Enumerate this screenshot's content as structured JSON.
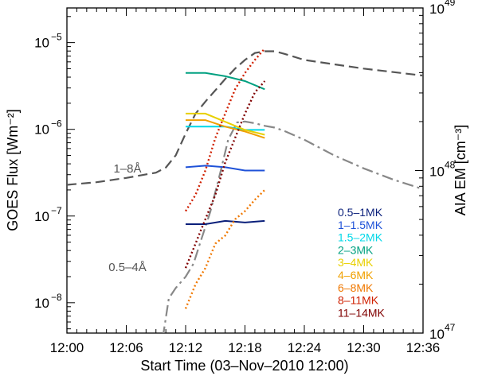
{
  "chart_data": {
    "type": "line",
    "xlabel": "Start Time (03–Nov–2010 12:00)",
    "ylabel_left": "GOES Flux [Wm⁻²]",
    "ylabel_right": "AIA EM [cm⁻³]",
    "x_range_min": [
      0,
      36
    ],
    "x_ticks": [
      {
        "v": 0,
        "label": "12:00"
      },
      {
        "v": 6,
        "label": "12:06"
      },
      {
        "v": 12,
        "label": "12:12"
      },
      {
        "v": 18,
        "label": "12:18"
      },
      {
        "v": 24,
        "label": "12:24"
      },
      {
        "v": 30,
        "label": "12:30"
      },
      {
        "v": 36,
        "label": "12:36"
      }
    ],
    "left_log_range": [
      -8.35,
      -4.6
    ],
    "left_ticks": [
      {
        "exp": -5,
        "base": "10",
        "sup": "−5"
      },
      {
        "exp": -6,
        "base": "10",
        "sup": "−6"
      },
      {
        "exp": -7,
        "base": "10",
        "sup": "−7"
      },
      {
        "exp": -8,
        "base": "10",
        "sup": "−8"
      }
    ],
    "right_log_range": [
      47,
      49
    ],
    "right_ticks": [
      {
        "exp": 49,
        "base": "10",
        "sup": "49"
      },
      {
        "exp": 48,
        "base": "10",
        "sup": "48"
      },
      {
        "exp": 47,
        "base": "10",
        "sup": "47"
      }
    ],
    "goes_series": [
      {
        "name": "1–8Å",
        "color": "#555555",
        "dash": "dashed",
        "points": [
          [
            0,
            -6.64
          ],
          [
            3,
            -6.61
          ],
          [
            6,
            -6.56
          ],
          [
            9,
            -6.5
          ],
          [
            10,
            -6.44
          ],
          [
            11,
            -6.3
          ],
          [
            12,
            -6.05
          ],
          [
            13,
            -5.82
          ],
          [
            14,
            -5.68
          ],
          [
            15,
            -5.55
          ],
          [
            16,
            -5.42
          ],
          [
            17,
            -5.3
          ],
          [
            18,
            -5.2
          ],
          [
            19,
            -5.12
          ],
          [
            20,
            -5.1
          ],
          [
            21,
            -5.1
          ],
          [
            22,
            -5.13
          ],
          [
            24,
            -5.2
          ],
          [
            27,
            -5.25
          ],
          [
            30,
            -5.3
          ],
          [
            33,
            -5.34
          ],
          [
            36,
            -5.38
          ]
        ]
      },
      {
        "name": "0.5–4Å",
        "color": "#888888",
        "dash": "dashdot",
        "points": [
          [
            9.7,
            -8.4
          ],
          [
            10.3,
            -7.95
          ],
          [
            11,
            -7.83
          ],
          [
            12,
            -7.7
          ],
          [
            12.8,
            -7.55
          ],
          [
            13.5,
            -7.3
          ],
          [
            14.5,
            -6.95
          ],
          [
            15.5,
            -6.5
          ],
          [
            16.3,
            -6.12
          ],
          [
            17.2,
            -5.92
          ],
          [
            18,
            -5.91
          ],
          [
            19,
            -5.93
          ],
          [
            20,
            -5.96
          ],
          [
            21,
            -5.98
          ],
          [
            22,
            -6.02
          ],
          [
            24,
            -6.12
          ],
          [
            27,
            -6.3
          ],
          [
            30,
            -6.45
          ],
          [
            33,
            -6.58
          ],
          [
            36,
            -6.69
          ]
        ]
      }
    ],
    "aia_series": [
      {
        "name": "0.5–1MK",
        "color": "#0a1f7a",
        "style": "solid",
        "points": [
          [
            12,
            47.67
          ],
          [
            14,
            47.67
          ],
          [
            16,
            47.69
          ],
          [
            18,
            47.68
          ],
          [
            20,
            47.69
          ]
        ]
      },
      {
        "name": "1–1.5MK",
        "color": "#1f52d8",
        "style": "solid",
        "points": [
          [
            12,
            48.02
          ],
          [
            14,
            48.03
          ],
          [
            16,
            48.02
          ],
          [
            18,
            48.0
          ],
          [
            20,
            48.0
          ]
        ]
      },
      {
        "name": "1.5–2MK",
        "color": "#00d8e8",
        "style": "solid",
        "points": [
          [
            12,
            48.27
          ],
          [
            14,
            48.27
          ],
          [
            16,
            48.27
          ],
          [
            18,
            48.25
          ],
          [
            20,
            48.25
          ]
        ]
      },
      {
        "name": "2–3MK",
        "color": "#00a080",
        "style": "solid",
        "points": [
          [
            12,
            48.6
          ],
          [
            14,
            48.6
          ],
          [
            16,
            48.58
          ],
          [
            18,
            48.55
          ],
          [
            20,
            48.5
          ]
        ]
      },
      {
        "name": "3–4MK",
        "color": "#e8d000",
        "style": "solid",
        "points": [
          [
            12,
            48.35
          ],
          [
            14,
            48.35
          ],
          [
            16,
            48.3
          ],
          [
            18,
            48.25
          ],
          [
            20,
            48.22
          ]
        ]
      },
      {
        "name": "4–6MK",
        "color": "#f0a000",
        "style": "solid",
        "points": [
          [
            12,
            48.31
          ],
          [
            14,
            48.31
          ],
          [
            16,
            48.27
          ],
          [
            18,
            48.24
          ],
          [
            20,
            48.2
          ]
        ]
      },
      {
        "name": "6–8MK",
        "color": "#f07800",
        "style": "dotted",
        "points": [
          [
            12,
            47.15
          ],
          [
            13,
            47.3
          ],
          [
            14,
            47.4
          ],
          [
            15,
            47.55
          ],
          [
            16,
            47.6
          ],
          [
            17,
            47.7
          ],
          [
            18,
            47.75
          ],
          [
            19,
            47.82
          ],
          [
            20,
            47.88
          ]
        ]
      },
      {
        "name": "8–11MK",
        "color": "#d02000",
        "style": "dotted",
        "points": [
          [
            12,
            47.75
          ],
          [
            13,
            47.85
          ],
          [
            14,
            48.0
          ],
          [
            15,
            48.2
          ],
          [
            16,
            48.35
          ],
          [
            17,
            48.5
          ],
          [
            18,
            48.6
          ],
          [
            19,
            48.68
          ],
          [
            20,
            48.75
          ]
        ]
      },
      {
        "name": "11–14MK",
        "color": "#800000",
        "style": "dotted",
        "points": [
          [
            12,
            47.4
          ],
          [
            13,
            47.55
          ],
          [
            14,
            47.7
          ],
          [
            15,
            47.85
          ],
          [
            16,
            48.05
          ],
          [
            17,
            48.2
          ],
          [
            18,
            48.35
          ],
          [
            19,
            48.48
          ],
          [
            20,
            48.55
          ]
        ]
      }
    ],
    "annotations": [
      {
        "text": "1–8Å",
        "series": "1–8Å"
      },
      {
        "text": "0.5–4Å",
        "series": "0.5–4Å"
      }
    ],
    "legend_position": "bottom-right"
  }
}
